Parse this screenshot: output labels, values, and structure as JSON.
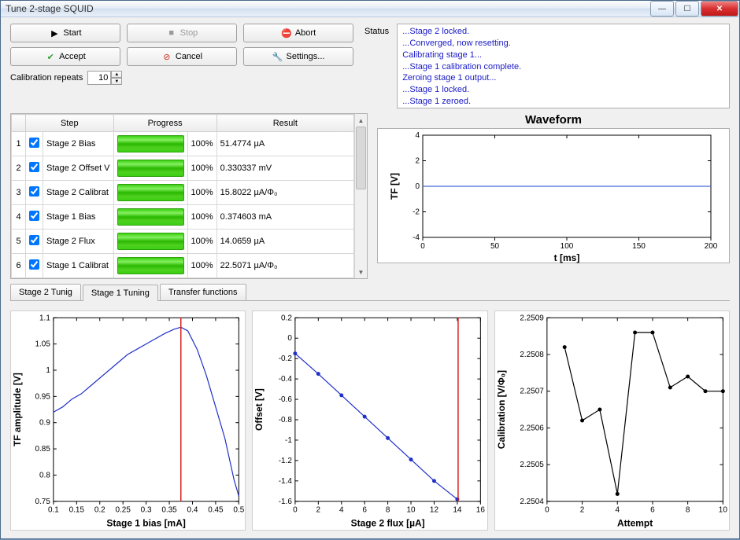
{
  "window": {
    "title": "Tune 2-stage SQUID"
  },
  "buttons": {
    "start": "Start",
    "stop": "Stop",
    "abort": "Abort",
    "accept": "Accept",
    "cancel": "Cancel",
    "settings": "Settings..."
  },
  "status_label": "Status",
  "status_lines": [
    "...Stage 2 locked.",
    "...Converged, now resetting.",
    "Calibrating stage 1...",
    "...Stage 1 calibration complete.",
    "Zeroing stage 1 output...",
    "...Stage 1 locked.",
    "...Stage 1 zeroed."
  ],
  "repeats_label": "Calibration repeats",
  "repeats_value": "10",
  "table": {
    "headers": {
      "step": "Step",
      "progress": "Progress",
      "result": "Result"
    },
    "rows": [
      {
        "n": "1",
        "step": "Stage 2 Bias",
        "pct": "100%",
        "result": "51.4774 µA"
      },
      {
        "n": "2",
        "step": "Stage 2 Offset V",
        "pct": "100%",
        "result": "0.330337 mV"
      },
      {
        "n": "3",
        "step": "Stage 2 Calibrat",
        "pct": "100%",
        "result": "15.8022 µA/Φ₀"
      },
      {
        "n": "4",
        "step": "Stage 1 Bias",
        "pct": "100%",
        "result": "0.374603 mA"
      },
      {
        "n": "5",
        "step": "Stage 2 Flux",
        "pct": "100%",
        "result": "14.0659 µA"
      },
      {
        "n": "6",
        "step": "Stage 1 Calibrat",
        "pct": "100%",
        "result": "22.5071 µA/Φ₀"
      }
    ],
    "progress_color": "#3ad010"
  },
  "tabs": {
    "t1": "Stage 2 Tunig",
    "t2": "Stage 1 Tuning",
    "t3": "Transfer functions"
  },
  "waveform": {
    "title": "Waveform",
    "xlabel": "t [ms]",
    "ylabel": "TF [V]",
    "xlim": [
      0,
      200
    ],
    "ylim": [
      -4,
      4
    ],
    "xticks": [
      0,
      50,
      100,
      150,
      200
    ],
    "yticks": [
      -4,
      -2,
      0,
      2,
      4
    ],
    "line_color": "#4a6ad8",
    "y_value": 0.0,
    "bg": "#ffffff",
    "grid_color": "#d8d8d8"
  },
  "chart1": {
    "title": "",
    "xlabel": "Stage 1 bias [mA]",
    "ylabel": "TF amplitude [V]",
    "xlim": [
      0.1,
      0.5
    ],
    "ylim": [
      0.75,
      1.1
    ],
    "xticks": [
      0.1,
      0.15,
      0.2,
      0.25,
      0.3,
      0.35,
      0.4,
      0.45,
      0.5
    ],
    "yticks": [
      0.75,
      0.8,
      0.85,
      0.9,
      0.95,
      1,
      1.05,
      1.1
    ],
    "line_color": "#2030c8",
    "marker_line_color": "#d82020",
    "marker_x": 0.375,
    "data": [
      [
        0.1,
        0.92
      ],
      [
        0.12,
        0.93
      ],
      [
        0.14,
        0.945
      ],
      [
        0.16,
        0.955
      ],
      [
        0.18,
        0.97
      ],
      [
        0.2,
        0.985
      ],
      [
        0.22,
        1.0
      ],
      [
        0.24,
        1.015
      ],
      [
        0.26,
        1.03
      ],
      [
        0.28,
        1.04
      ],
      [
        0.3,
        1.05
      ],
      [
        0.32,
        1.06
      ],
      [
        0.34,
        1.07
      ],
      [
        0.36,
        1.078
      ],
      [
        0.375,
        1.082
      ],
      [
        0.39,
        1.075
      ],
      [
        0.41,
        1.04
      ],
      [
        0.43,
        0.99
      ],
      [
        0.45,
        0.93
      ],
      [
        0.47,
        0.87
      ],
      [
        0.49,
        0.79
      ],
      [
        0.5,
        0.76
      ]
    ]
  },
  "chart2": {
    "xlabel": "Stage 2 flux [µA]",
    "ylabel": "Offset [V]",
    "xlim": [
      0,
      16
    ],
    "ylim": [
      -1.6,
      0.2
    ],
    "xticks": [
      0,
      2,
      4,
      6,
      8,
      10,
      12,
      14,
      16
    ],
    "yticks": [
      -1.6,
      -1.4,
      -1.2,
      -1.0,
      -0.8,
      -0.6,
      -0.4,
      -0.2,
      0,
      0.2
    ],
    "line_color": "#2030c8",
    "marker_line_color": "#d82020",
    "marker_x": 14.07,
    "data": [
      [
        0,
        -0.15
      ],
      [
        2,
        -0.35
      ],
      [
        4,
        -0.56
      ],
      [
        6,
        -0.77
      ],
      [
        8,
        -0.98
      ],
      [
        10,
        -1.19
      ],
      [
        12,
        -1.4
      ],
      [
        14,
        -1.58
      ]
    ]
  },
  "chart3": {
    "xlabel": "Attempt",
    "ylabel": "Calibration [V/Φ₀]",
    "xlim": [
      0,
      10
    ],
    "ylim": [
      2.2504,
      2.2509
    ],
    "xticks": [
      0,
      2,
      4,
      6,
      8,
      10
    ],
    "yticks": [
      2.2504,
      2.2505,
      2.2506,
      2.2507,
      2.2508,
      2.2509
    ],
    "line_color": "#000000",
    "marker_color": "#000000",
    "data": [
      [
        1,
        2.25082
      ],
      [
        2,
        2.25062
      ],
      [
        3,
        2.25065
      ],
      [
        4,
        2.25042
      ],
      [
        5,
        2.25086
      ],
      [
        6,
        2.25086
      ],
      [
        7,
        2.25071
      ],
      [
        8,
        2.25074
      ],
      [
        9,
        2.2507
      ],
      [
        10,
        2.2507
      ]
    ]
  },
  "colors": {
    "blue": "#4a6ad8",
    "red": "#d82020",
    "green_ok": "#30a030",
    "orange": "#e08020"
  }
}
